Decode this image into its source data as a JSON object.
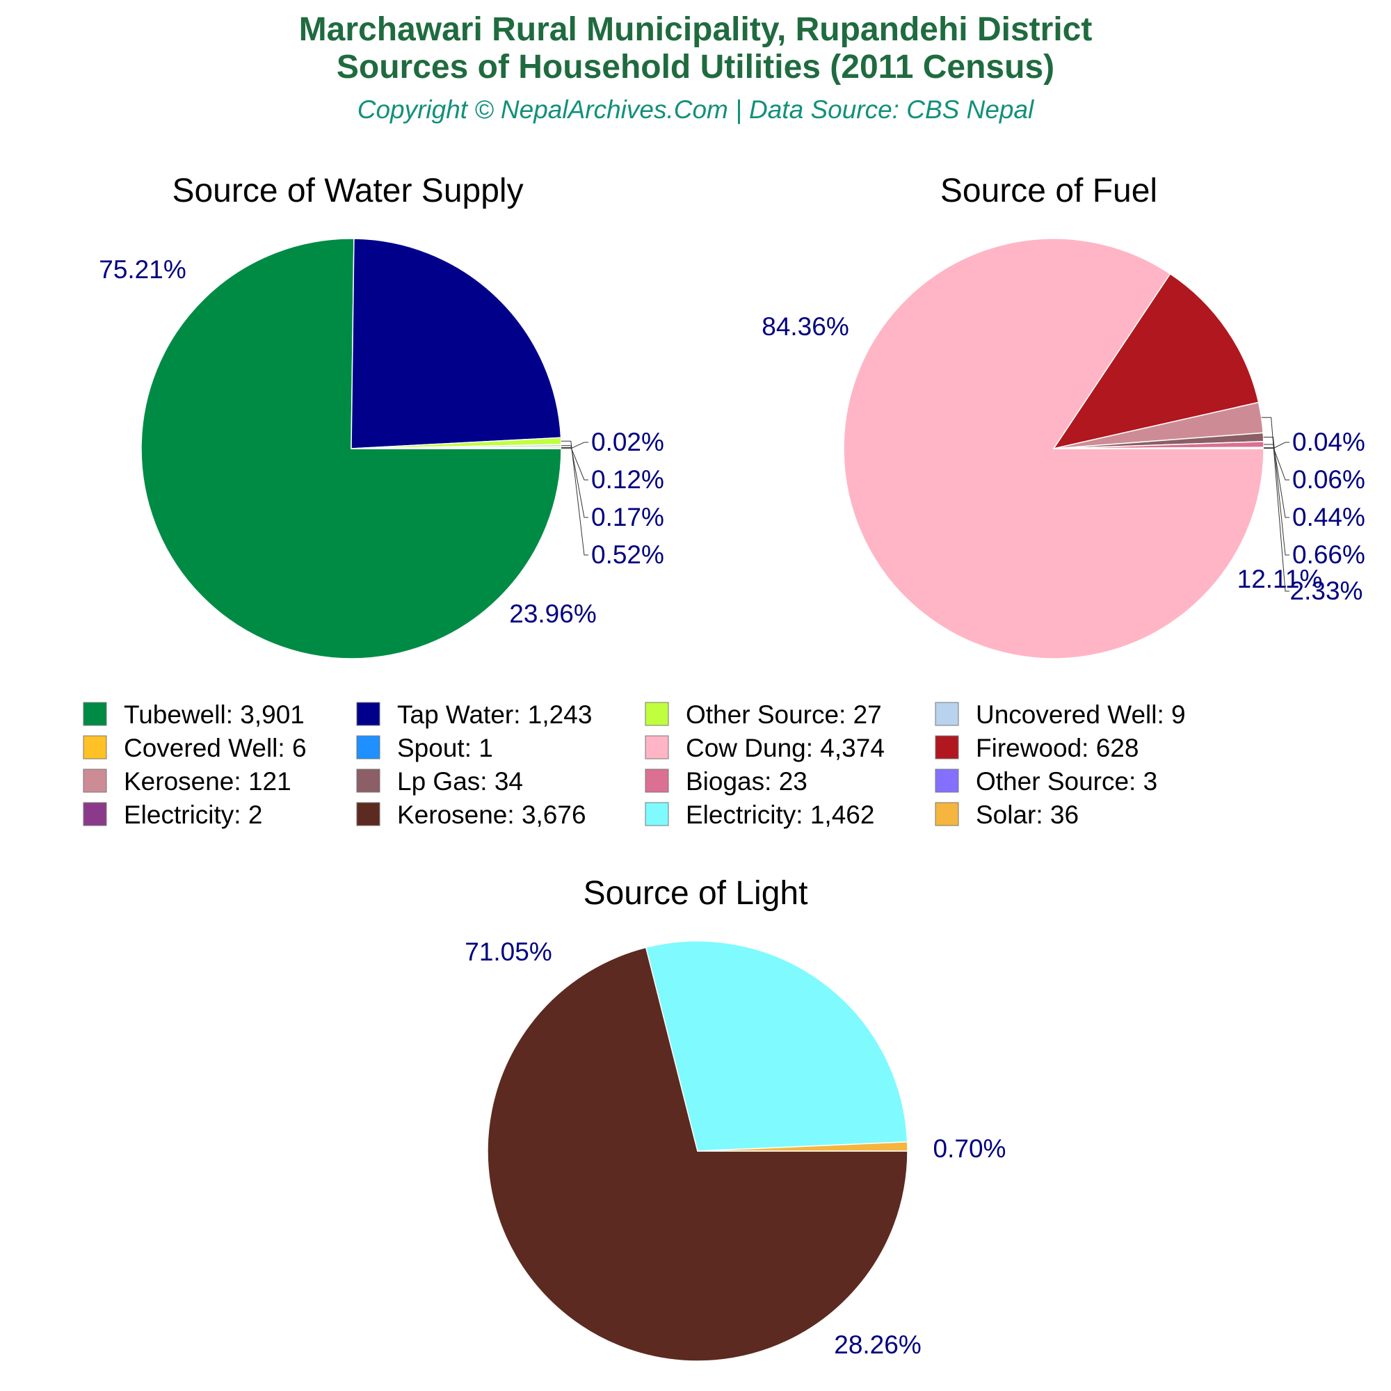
{
  "header": {
    "title_line1": "Marchawari Rural Municipality, Rupandehi District",
    "title_line2": "Sources of Household Utilities (2011 Census)",
    "subtitle": "Copyright © NepalArchives.Com | Data Source: CBS Nepal",
    "title_color": "#1f6b3f",
    "subtitle_color": "#12907a"
  },
  "label_color": "#000080",
  "chart_data": [
    {
      "type": "pie",
      "title": "Source of Water Supply",
      "categories": [
        "Tubewell",
        "Tap Water",
        "Other Source",
        "Uncovered Well",
        "Covered Well",
        "Spout"
      ],
      "values": [
        3901,
        1243,
        27,
        9,
        6,
        1
      ],
      "colors": [
        "#008b45",
        "#00008b",
        "#c0ff3e",
        "#b9d3ee",
        "#ffc125",
        "#1e90ff"
      ],
      "percent_labels": [
        "75.21%",
        "23.96%",
        "0.52%",
        "0.17%",
        "0.12%",
        "0.02%"
      ]
    },
    {
      "type": "pie",
      "title": "Source of Fuel",
      "categories": [
        "Cow Dung",
        "Firewood",
        "Kerosene",
        "Lp Gas",
        "Biogas",
        "Other Source",
        "Electricity"
      ],
      "values": [
        4374,
        628,
        121,
        34,
        23,
        3,
        2
      ],
      "colors": [
        "#ffb5c5",
        "#b0171f",
        "#cd8c95",
        "#8b5f65",
        "#db7093",
        "#8470ff",
        "#8b3a8b"
      ],
      "percent_labels": [
        "84.36%",
        "12.11%",
        "2.33%",
        "0.66%",
        "0.44%",
        "0.06%",
        "0.04%"
      ]
    },
    {
      "type": "pie",
      "title": "Source of Light",
      "categories": [
        "Kerosene",
        "Electricity",
        "Solar"
      ],
      "values": [
        3676,
        1462,
        36
      ],
      "colors": [
        "#5c2a20",
        "#7ffaff",
        "#f5b53f"
      ],
      "percent_labels": [
        "71.05%",
        "28.26%",
        "0.70%"
      ]
    }
  ],
  "legend": {
    "items": [
      {
        "label": "Tubewell: 3,901",
        "color": "#008b45"
      },
      {
        "label": "Tap Water: 1,243",
        "color": "#00008b"
      },
      {
        "label": "Other Source: 27",
        "color": "#c0ff3e"
      },
      {
        "label": "Uncovered Well: 9",
        "color": "#b9d3ee"
      },
      {
        "label": "Covered Well: 6",
        "color": "#ffc125"
      },
      {
        "label": "Spout: 1",
        "color": "#1e90ff"
      },
      {
        "label": "Cow Dung: 4,374",
        "color": "#ffb5c5"
      },
      {
        "label": "Firewood: 628",
        "color": "#b0171f"
      },
      {
        "label": "Kerosene: 121",
        "color": "#cd8c95"
      },
      {
        "label": "Lp Gas: 34",
        "color": "#8b5f65"
      },
      {
        "label": "Biogas: 23",
        "color": "#db7093"
      },
      {
        "label": "Other Source: 3",
        "color": "#8470ff"
      },
      {
        "label": "Electricity: 2",
        "color": "#8b3a8b"
      },
      {
        "label": "Kerosene: 3,676",
        "color": "#5c2a20"
      },
      {
        "label": "Electricity: 1,462",
        "color": "#7ffaff"
      },
      {
        "label": "Solar: 36",
        "color": "#f5b53f"
      }
    ]
  }
}
